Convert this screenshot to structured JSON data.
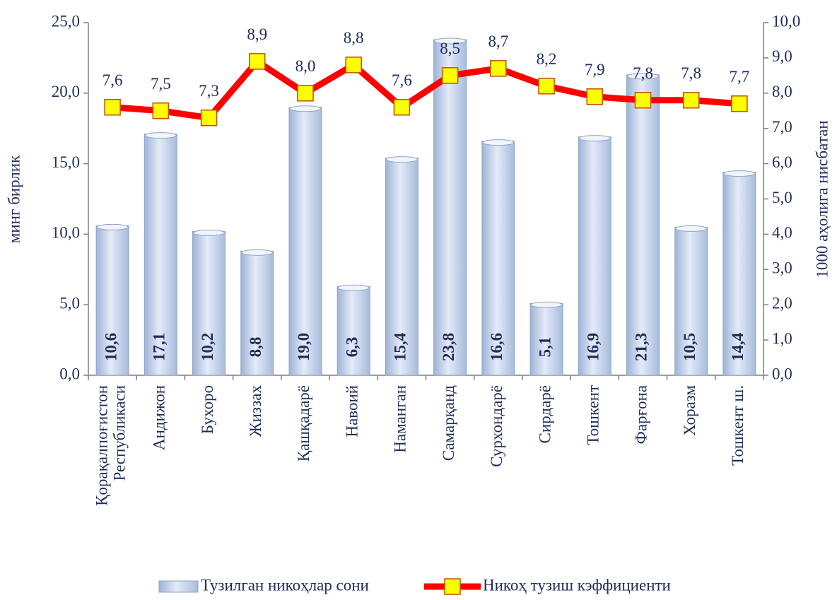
{
  "chart_data": {
    "type": "bar_line",
    "categories": [
      "Қорақалпоғистон\nРеспубликаси",
      "Андижон",
      "Бухоро",
      "Жиззах",
      "Қашқадарё",
      "Навоий",
      "Наманган",
      "Самарқанд",
      "Сурхондарё",
      "Сирдарё",
      "Тошкент",
      "Фарғона",
      "Хоразм",
      "Тошкент ш."
    ],
    "ylabel": "минг бирлик",
    "y2label": "1000 аҳолига нисбатан",
    "ylim": [
      0,
      25
    ],
    "yticks": [
      {
        "value": 0,
        "label": "0,0"
      },
      {
        "value": 5,
        "label": "5,0"
      },
      {
        "value": 10,
        "label": "10,0"
      },
      {
        "value": 15,
        "label": "15,0"
      },
      {
        "value": 20,
        "label": "20,0"
      },
      {
        "value": 25,
        "label": "25,0"
      }
    ],
    "y2lim": [
      0,
      10
    ],
    "y2ticks": [
      {
        "value": 0,
        "label": "0,0"
      },
      {
        "value": 1,
        "label": "1,0"
      },
      {
        "value": 2,
        "label": "2,0"
      },
      {
        "value": 3,
        "label": "3,0"
      },
      {
        "value": 4,
        "label": "4,0"
      },
      {
        "value": 5,
        "label": "5,0"
      },
      {
        "value": 6,
        "label": "6,0"
      },
      {
        "value": 7,
        "label": "7,0"
      },
      {
        "value": 8,
        "label": "8,0"
      },
      {
        "value": 9,
        "label": "9,0"
      },
      {
        "value": 10,
        "label": "10,0"
      }
    ],
    "series": [
      {
        "name": "Тузилган никоҳлар сони",
        "type": "bar",
        "color": "#c5d3ea",
        "values": [
          10.6,
          17.1,
          10.2,
          8.8,
          19.0,
          6.3,
          15.4,
          23.8,
          16.6,
          5.1,
          16.9,
          21.3,
          10.5,
          14.4
        ],
        "value_labels": [
          "10,6",
          "17,1",
          "10,2",
          "8,8",
          "19,0",
          "6,3",
          "15,4",
          "23,8",
          "16,6",
          "5,1",
          "16,9",
          "21,3",
          "10,5",
          "14,4"
        ]
      },
      {
        "name": "Никоҳ тузиш кэффициенти",
        "type": "line",
        "axis": "y2",
        "color": "#ff0000",
        "marker_color": "#ffff00",
        "values": [
          7.6,
          7.5,
          7.3,
          8.9,
          8.0,
          8.8,
          7.6,
          8.5,
          8.7,
          8.2,
          7.9,
          7.8,
          7.8,
          7.7
        ],
        "value_labels": [
          "7,6",
          "7,5",
          "7,3",
          "8,9",
          "8,0",
          "8,8",
          "7,6",
          "8,5",
          "8,7",
          "8,2",
          "7,9",
          "7,8",
          "7,8",
          "7,7"
        ]
      }
    ],
    "legend": "bottom"
  }
}
